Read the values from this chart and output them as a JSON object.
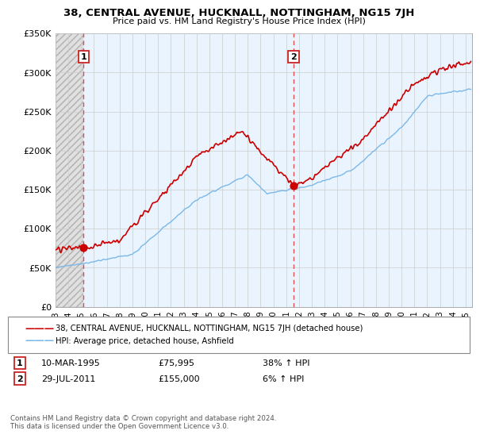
{
  "title": "38, CENTRAL AVENUE, HUCKNALL, NOTTINGHAM, NG15 7JH",
  "subtitle": "Price paid vs. HM Land Registry's House Price Index (HPI)",
  "ylabel_ticks": [
    "£0",
    "£50K",
    "£100K",
    "£150K",
    "£200K",
    "£250K",
    "£300K",
    "£350K"
  ],
  "ylabel_values": [
    0,
    50000,
    100000,
    150000,
    200000,
    250000,
    300000,
    350000
  ],
  "ylim": [
    0,
    350000
  ],
  "xlim_start": 1993.0,
  "xlim_end": 2025.5,
  "hpi_color": "#7ab8e8",
  "price_color": "#cc0000",
  "dashed_line_color": "#e05050",
  "transaction1": {
    "date": "10-MAR-1995",
    "price": 75995,
    "label": "1",
    "year": 1995.19,
    "pct": "38% ↑ HPI"
  },
  "transaction2": {
    "date": "29-JUL-2011",
    "price": 155000,
    "label": "2",
    "year": 2011.57,
    "pct": "6% ↑ HPI"
  },
  "legend_property": "38, CENTRAL AVENUE, HUCKNALL, NOTTINGHAM, NG15 7JH (detached house)",
  "legend_hpi": "HPI: Average price, detached house, Ashfield",
  "footer": "Contains HM Land Registry data © Crown copyright and database right 2024.\nThis data is licensed under the Open Government Licence v3.0.",
  "xtick_years": [
    1993,
    1994,
    1995,
    1996,
    1997,
    1998,
    1999,
    2000,
    2001,
    2002,
    2003,
    2004,
    2005,
    2006,
    2007,
    2008,
    2009,
    2010,
    2011,
    2012,
    2013,
    2014,
    2015,
    2016,
    2017,
    2018,
    2019,
    2020,
    2021,
    2022,
    2023,
    2024,
    2025
  ]
}
